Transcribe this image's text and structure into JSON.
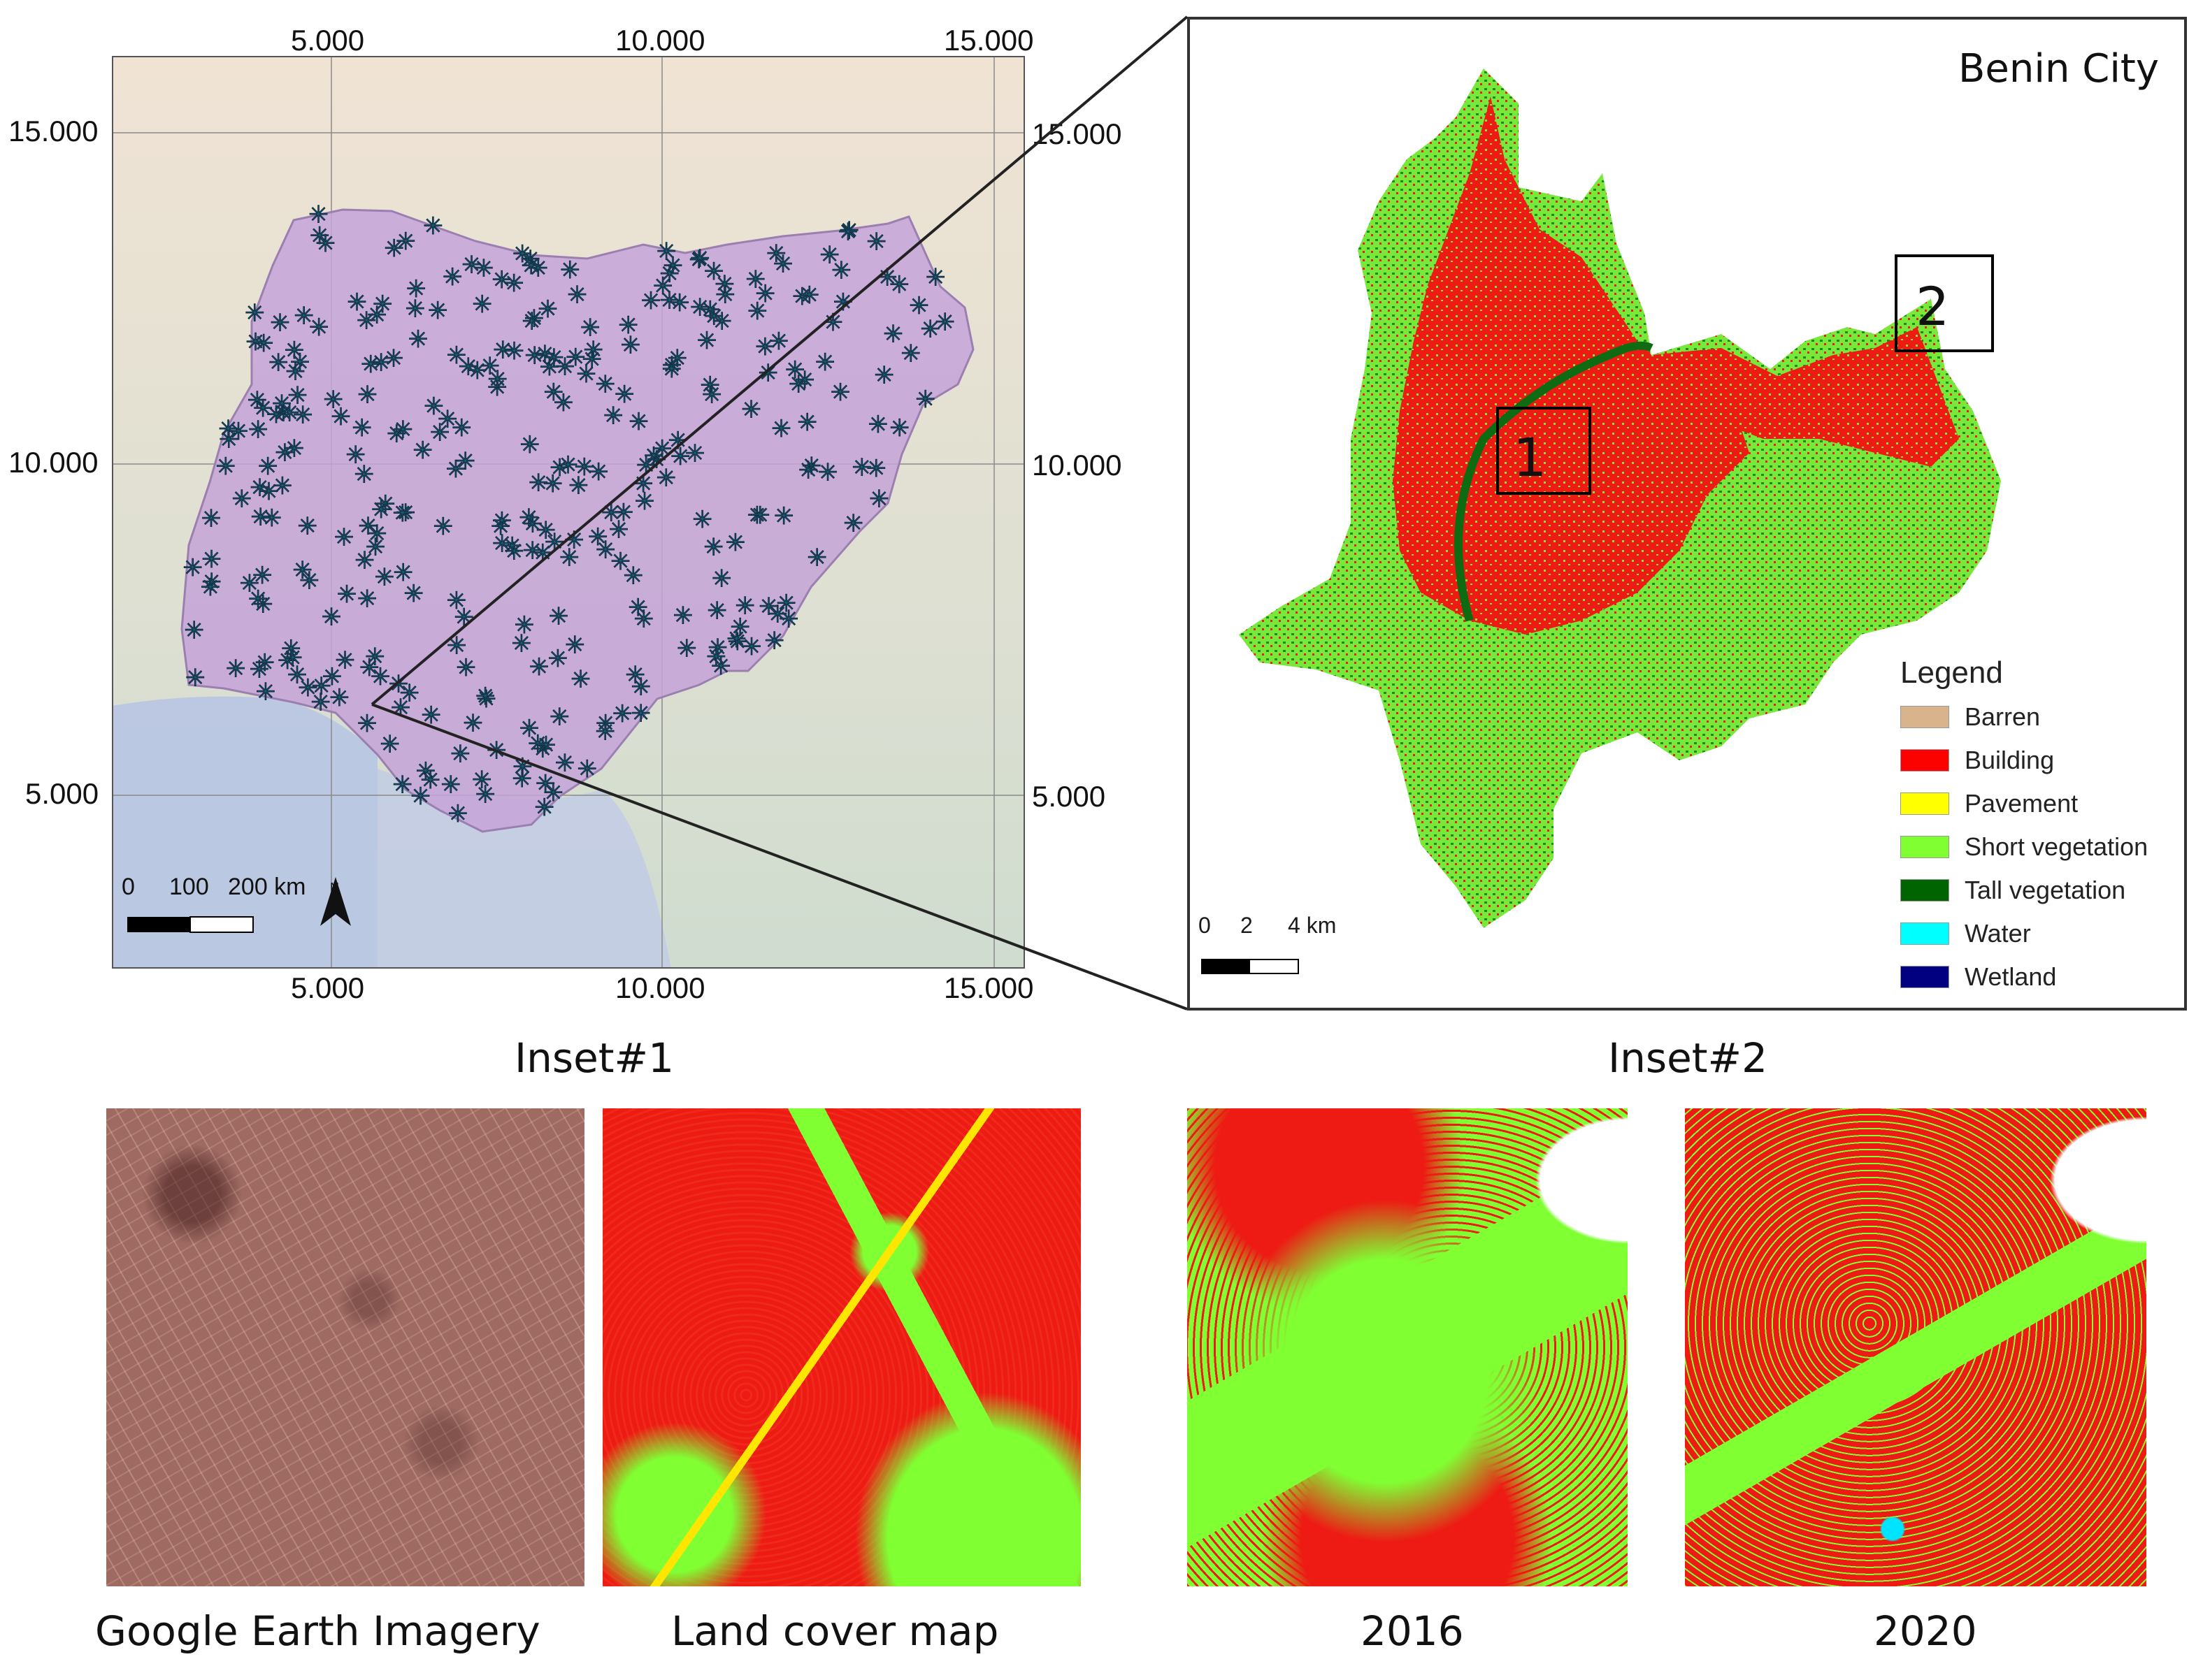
{
  "map": {
    "x_ticks_top": [
      "5.000",
      "10.000",
      "15.000"
    ],
    "x_ticks_bottom": [
      "5.000",
      "10.000",
      "15.000"
    ],
    "y_ticks_left": [
      "15.000",
      "10.000",
      "5.000"
    ],
    "y_ticks_right": [
      "15.000",
      "10.000",
      "5.000"
    ],
    "scale_bar": {
      "labels": [
        "0",
        "100",
        "200 km"
      ]
    },
    "north_arrow": {
      "label": "N",
      "icon": "north-arrow-icon"
    },
    "colors": {
      "country_fill": "#c4a3d8",
      "point_marker": "#1f5f80",
      "background": "#e9e2d6",
      "sea": "#b8c7e6"
    }
  },
  "city_map": {
    "title": "Benin City",
    "insets": [
      "1",
      "2"
    ],
    "scale_bar": {
      "labels": [
        "0",
        "2",
        "4 km"
      ]
    },
    "legend": {
      "title": "Legend",
      "items": [
        {
          "label": "Barren",
          "color": "#d9b38c"
        },
        {
          "label": "Building",
          "color": "#ff0000"
        },
        {
          "label": "Pavement",
          "color": "#ffff00"
        },
        {
          "label": "Short vegetation",
          "color": "#80ff33"
        },
        {
          "label": "Tall vegetation",
          "color": "#006400"
        },
        {
          "label": "Water",
          "color": "#00ffff"
        },
        {
          "label": "Wetland",
          "color": "#000080"
        }
      ]
    }
  },
  "inset1": {
    "title": "Inset#1",
    "panels": [
      {
        "caption": "Google Earth Imagery"
      },
      {
        "caption": "Land cover map"
      }
    ]
  },
  "inset2": {
    "title": "Inset#2",
    "panels": [
      {
        "caption": "2016"
      },
      {
        "caption": "2020"
      }
    ]
  }
}
